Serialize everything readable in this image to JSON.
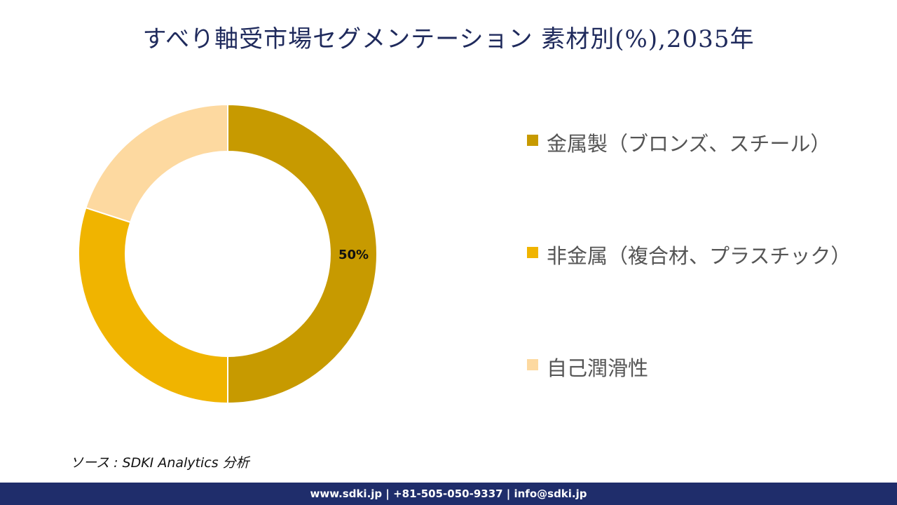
{
  "title": "すべり軸受市場セグメンテーション 素材別(%),2035年",
  "chart_data": {
    "type": "pie",
    "title": "すべり軸受市場セグメンテーション 素材別(%),2035年",
    "categories": [
      "金属製（ブロンズ、スチール）",
      "非金属（複合材、プラスチック）",
      "自己潤滑性"
    ],
    "values": [
      50,
      30,
      20
    ],
    "colors": [
      "#c79a00",
      "#f0b400",
      "#fdd9a0"
    ],
    "data_labels": [
      "50%",
      "",
      ""
    ],
    "donut": true,
    "legend_position": "right"
  },
  "legend": {
    "items": [
      {
        "label": "金属製（ブロンズ、スチール）",
        "color": "#c79a00"
      },
      {
        "label": "非金属（複合材、プラスチック）",
        "color": "#f0b400"
      },
      {
        "label": "自己潤滑性",
        "color": "#fdd9a0"
      }
    ]
  },
  "source": "ソース : SDKI Analytics 分析",
  "footer": {
    "text": "www.sdki.jp | +81-505-050-9337 | info@sdki.jp",
    "color": "#1f2d6b"
  }
}
